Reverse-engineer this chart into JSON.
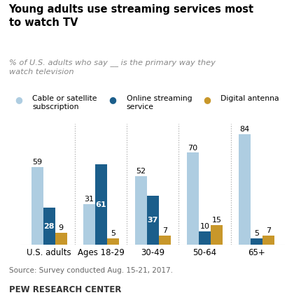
{
  "title": "Young adults use streaming services most\nto watch TV",
  "subtitle": "% of U.S. adults who say __ is the primary way they\nwatch television",
  "categories": [
    "U.S. adults",
    "Ages 18-29",
    "30-49",
    "50-64",
    "65+"
  ],
  "cable": [
    59,
    31,
    52,
    70,
    84
  ],
  "streaming": [
    28,
    61,
    37,
    10,
    5
  ],
  "antenna": [
    9,
    5,
    7,
    15,
    7
  ],
  "cable_color": "#aecde1",
  "streaming_color": "#1b5e8b",
  "antenna_color": "#c8972a",
  "source": "Source: Survey conducted Aug. 15-21, 2017.",
  "footer": "PEW RESEARCH CENTER",
  "legend_labels": [
    "Cable or satellite\nsubscription",
    "Online streaming\nservice",
    "Digital antenna"
  ],
  "bar_width": 0.23,
  "ylim": [
    0,
    92
  ]
}
